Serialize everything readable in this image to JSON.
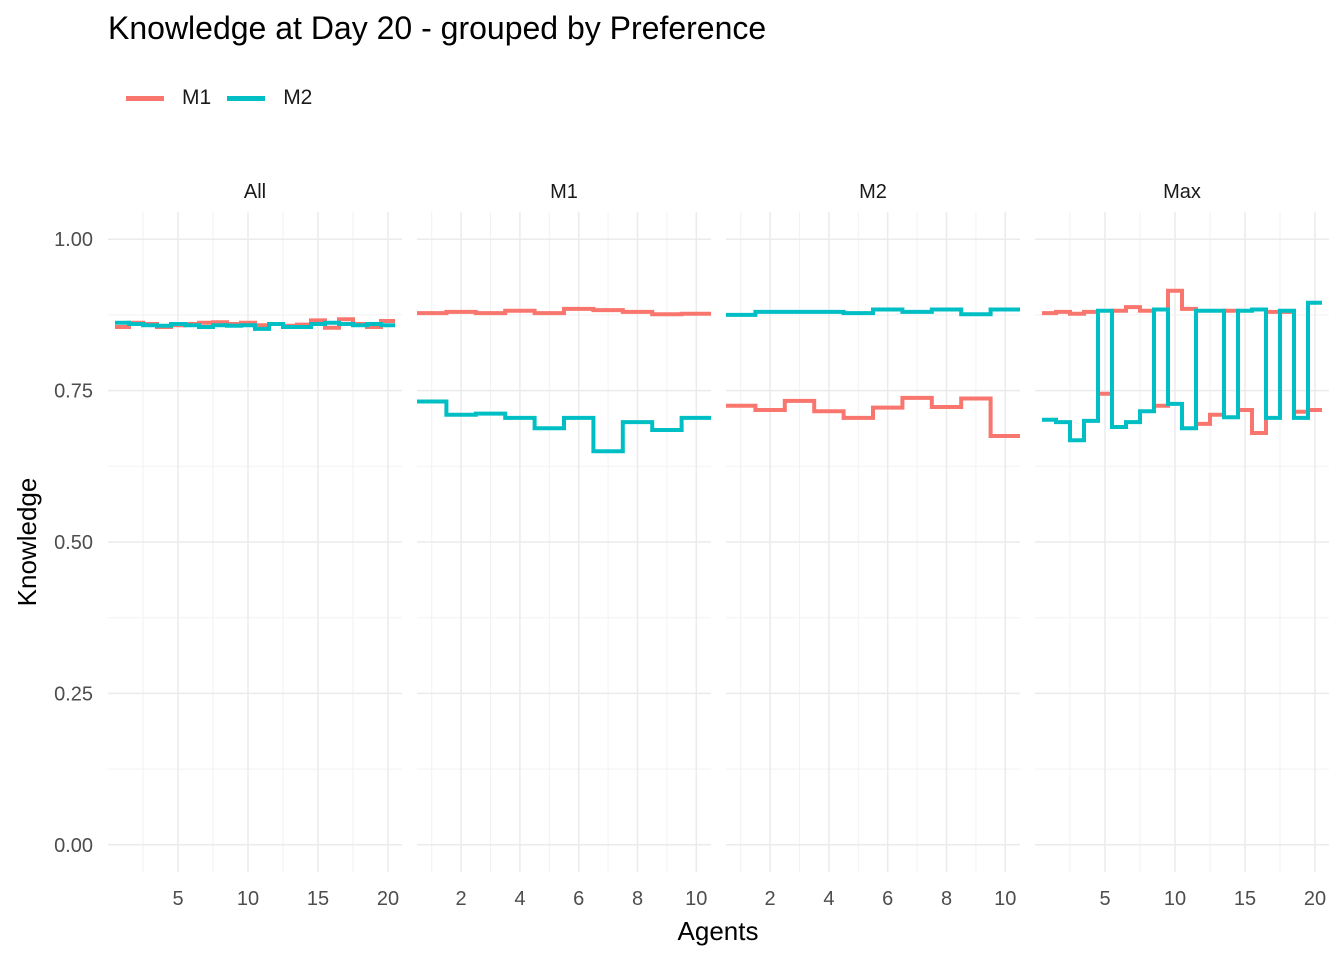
{
  "chart_data": {
    "type": "line",
    "title": "Knowledge at Day 20 - grouped by Preference",
    "xlabel": "Agents",
    "ylabel": "Knowledge",
    "ylim": [
      -0.045,
      1.045
    ],
    "y_ticks": [
      0.0,
      0.25,
      0.5,
      0.75,
      1.0
    ],
    "y_tick_labels": [
      "0.00",
      "0.25",
      "0.50",
      "0.75",
      "1.00"
    ],
    "grid": true,
    "legend": {
      "placement": "top-left",
      "entries": [
        {
          "name": "M1",
          "color": "#F8766D"
        },
        {
          "name": "M2",
          "color": "#00BFC4"
        }
      ]
    },
    "line_style": "step",
    "panels": [
      {
        "label": "All",
        "xlim": [
          0,
          21
        ],
        "x_ticks": [
          5,
          10,
          15,
          20
        ],
        "series": [
          {
            "name": "M1",
            "color": "#F8766D",
            "x": [
              1,
              2,
              3,
              4,
              5,
              6,
              7,
              8,
              9,
              10,
              11,
              12,
              13,
              14,
              15,
              16,
              17,
              18,
              19,
              20
            ],
            "values": [
              0.855,
              0.862,
              0.86,
              0.855,
              0.858,
              0.86,
              0.862,
              0.863,
              0.86,
              0.862,
              0.858,
              0.86,
              0.857,
              0.859,
              0.866,
              0.854,
              0.868,
              0.86,
              0.855,
              0.865
            ]
          },
          {
            "name": "M2",
            "color": "#00BFC4",
            "x": [
              1,
              2,
              3,
              4,
              5,
              6,
              7,
              8,
              9,
              10,
              11,
              12,
              13,
              14,
              15,
              16,
              17,
              18,
              19,
              20
            ],
            "values": [
              0.862,
              0.86,
              0.858,
              0.857,
              0.86,
              0.858,
              0.855,
              0.858,
              0.857,
              0.858,
              0.852,
              0.86,
              0.855,
              0.855,
              0.86,
              0.862,
              0.86,
              0.858,
              0.86,
              0.858
            ]
          }
        ]
      },
      {
        "label": "M1",
        "xlim": [
          0.5,
          10.5
        ],
        "x_ticks": [
          2,
          4,
          6,
          8,
          10
        ],
        "series": [
          {
            "name": "M1",
            "color": "#F8766D",
            "x": [
              1,
              2,
              3,
              4,
              5,
              6,
              7,
              8,
              9,
              10
            ],
            "values": [
              0.878,
              0.88,
              0.878,
              0.882,
              0.878,
              0.885,
              0.883,
              0.88,
              0.876,
              0.877
            ]
          },
          {
            "name": "M2",
            "color": "#00BFC4",
            "x": [
              1,
              2,
              3,
              4,
              5,
              6,
              7,
              8,
              9,
              10
            ],
            "values": [
              0.732,
              0.71,
              0.712,
              0.705,
              0.688,
              0.705,
              0.65,
              0.698,
              0.685,
              0.705
            ]
          }
        ]
      },
      {
        "label": "M2",
        "xlim": [
          0.5,
          10.5
        ],
        "x_ticks": [
          2,
          4,
          6,
          8,
          10
        ],
        "series": [
          {
            "name": "M1",
            "color": "#F8766D",
            "x": [
              1,
              2,
              3,
              4,
              5,
              6,
              7,
              8,
              9,
              10
            ],
            "values": [
              0.725,
              0.718,
              0.733,
              0.716,
              0.705,
              0.722,
              0.738,
              0.723,
              0.737,
              0.675
            ]
          },
          {
            "name": "M2",
            "color": "#00BFC4",
            "x": [
              1,
              2,
              3,
              4,
              5,
              6,
              7,
              8,
              9,
              10
            ],
            "values": [
              0.875,
              0.88,
              0.88,
              0.88,
              0.878,
              0.884,
              0.88,
              0.884,
              0.876,
              0.884
            ]
          }
        ]
      },
      {
        "label": "Max",
        "xlim": [
          0,
          21
        ],
        "x_ticks": [
          5,
          10,
          15,
          20
        ],
        "series": [
          {
            "name": "M1",
            "color": "#F8766D",
            "x": [
              1,
              2,
              3,
              4,
              5,
              6,
              7,
              8,
              9,
              10,
              11,
              12,
              13,
              14,
              15,
              16,
              17,
              18,
              19,
              20
            ],
            "values": [
              0.878,
              0.88,
              0.877,
              0.88,
              0.745,
              0.882,
              0.888,
              0.882,
              0.725,
              0.915,
              0.885,
              0.695,
              0.71,
              0.882,
              0.718,
              0.68,
              0.88,
              0.88,
              0.715,
              0.718
            ]
          },
          {
            "name": "M2",
            "color": "#00BFC4",
            "x": [
              1,
              2,
              3,
              4,
              5,
              6,
              7,
              8,
              9,
              10,
              11,
              12,
              13,
              14,
              15,
              16,
              17,
              18,
              19,
              20
            ],
            "values": [
              0.702,
              0.698,
              0.668,
              0.7,
              0.882,
              0.69,
              0.698,
              0.716,
              0.884,
              0.728,
              0.688,
              0.882,
              0.882,
              0.706,
              0.882,
              0.884,
              0.705,
              0.882,
              0.705,
              0.895
            ]
          }
        ]
      }
    ]
  }
}
